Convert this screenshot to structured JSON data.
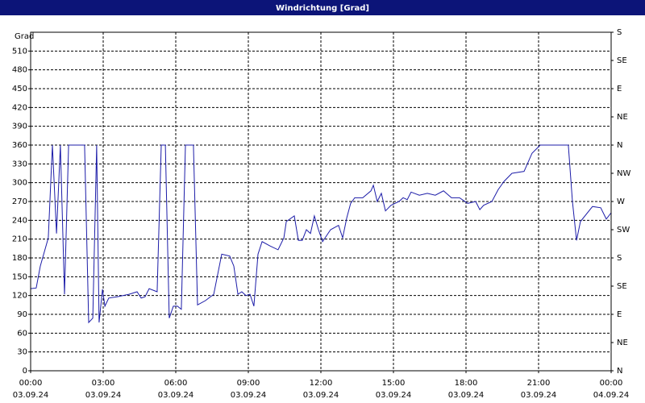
{
  "chart_data": {
    "type": "line",
    "title": "Windrichtung [Grad]",
    "ylabel": "Grad",
    "x": [
      0,
      0.23,
      0.4,
      0.73,
      0.9,
      1.07,
      1.23,
      1.4,
      1.57,
      2.23,
      2.4,
      2.57,
      2.73,
      2.83,
      2.97,
      3.07,
      3.23,
      3.57,
      4.07,
      4.4,
      4.57,
      4.73,
      4.9,
      5.23,
      5.4,
      5.57,
      5.73,
      5.9,
      6.07,
      6.23,
      6.4,
      6.73,
      6.9,
      7.23,
      7.57,
      7.9,
      8.23,
      8.4,
      8.57,
      8.73,
      8.9,
      9.07,
      9.23,
      9.4,
      9.57,
      9.9,
      10.23,
      10.47,
      10.57,
      10.9,
      11.07,
      11.23,
      11.4,
      11.57,
      11.73,
      11.9,
      12.07,
      12.4,
      12.73,
      12.9,
      13.07,
      13.23,
      13.4,
      13.73,
      14.07,
      14.17,
      14.33,
      14.5,
      14.67,
      14.9,
      15.23,
      15.4,
      15.57,
      15.73,
      16.07,
      16.4,
      16.73,
      17.07,
      17.4,
      17.73,
      18.07,
      18.4,
      18.57,
      18.73,
      19.07,
      19.33,
      19.57,
      19.9,
      20.4,
      20.73,
      21.07,
      22.23,
      22.4,
      22.57,
      22.73,
      23.23,
      23.57,
      23.8,
      24
    ],
    "series": [
      {
        "name": "Windrichtung",
        "color": "#1c1ca8",
        "values": [
          131,
          132,
          167,
          212,
          360,
          219,
          360,
          122,
          360,
          360,
          77,
          84,
          360,
          77,
          130,
          103,
          116,
          118,
          122,
          126,
          116,
          118,
          131,
          126,
          360,
          360,
          84,
          103,
          103,
          98,
          360,
          360,
          105,
          112,
          122,
          186,
          183,
          167,
          122,
          126,
          120,
          122,
          103,
          186,
          206,
          199,
          193,
          212,
          238,
          247,
          208,
          208,
          225,
          219,
          247,
          225,
          206,
          225,
          232,
          212,
          244,
          267,
          276,
          276,
          287,
          296,
          270,
          283,
          255,
          264,
          270,
          276,
          273,
          285,
          280,
          283,
          280,
          287,
          276,
          276,
          267,
          270,
          257,
          264,
          270,
          289,
          302,
          315,
          318,
          347,
          360,
          360,
          270,
          208,
          238,
          262,
          260,
          242,
          252
        ]
      }
    ],
    "xlim": [
      0,
      24
    ],
    "xticks": [
      {
        "value": 0,
        "label": "00:00"
      },
      {
        "value": 3,
        "label": "03:00"
      },
      {
        "value": 6,
        "label": "06:00"
      },
      {
        "value": 9,
        "label": "09:00"
      },
      {
        "value": 12,
        "label": "12:00"
      },
      {
        "value": 15,
        "label": "15:00"
      },
      {
        "value": 18,
        "label": "18:00"
      },
      {
        "value": 21,
        "label": "21:00"
      },
      {
        "value": 24,
        "label": "00:00"
      }
    ],
    "xtick_dates": [
      "03.09.24",
      "03.09.24",
      "03.09.24",
      "03.09.24",
      "03.09.24",
      "03.09.24",
      "03.09.24",
      "03.09.24",
      "04.09.24"
    ],
    "ylim": [
      0,
      540
    ],
    "yticks": [
      0,
      30,
      60,
      90,
      120,
      150,
      180,
      210,
      240,
      270,
      300,
      330,
      360,
      390,
      420,
      450,
      480,
      510
    ],
    "y2lim": [
      0,
      540
    ],
    "y2ticks": [
      {
        "value": 0,
        "label": "N"
      },
      {
        "value": 45,
        "label": "NE"
      },
      {
        "value": 90,
        "label": "E"
      },
      {
        "value": 135,
        "label": "SE"
      },
      {
        "value": 180,
        "label": "S"
      },
      {
        "value": 225,
        "label": "SW"
      },
      {
        "value": 270,
        "label": "W"
      },
      {
        "value": 315,
        "label": "NW"
      },
      {
        "value": 360,
        "label": "N"
      },
      {
        "value": 405,
        "label": "NE"
      },
      {
        "value": 450,
        "label": "E"
      },
      {
        "value": 495,
        "label": "SE"
      },
      {
        "value": 540,
        "label": "S"
      }
    ],
    "grid": true
  }
}
